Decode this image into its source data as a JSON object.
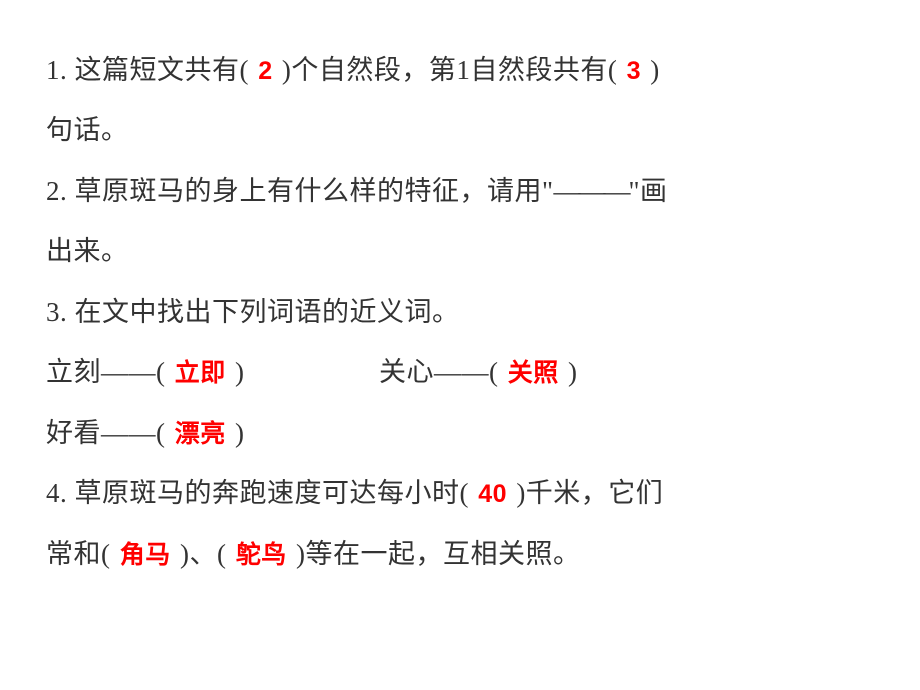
{
  "text_color": "#333333",
  "answer_color": "#ff0000",
  "background_color": "#ffffff",
  "base_font_size": 27,
  "answer_font_size": 25,
  "line_height": 2.24,
  "q1": {
    "prefix": "1.  这篇短文共有(",
    "ans1": "2",
    "mid1": ")个自然段，第1自然段共有(",
    "ans2": "3",
    "suffix1": ")",
    "line2": "句话。"
  },
  "q2": {
    "prefix": "2.  草原斑马的身上有什么样的特征，请用\"",
    "dash": "———",
    "mid": "\"画",
    "line2": "出来。"
  },
  "q3": {
    "title": "3.  在文中找出下列词语的近义词。",
    "w1_label": " 立刻——(",
    "w1_ans": "立即",
    "w1_close": ")",
    "w2_label": "关心——(",
    "w2_ans": "关照",
    "w2_close": ")",
    "w3_label": " 好看——(",
    "w3_ans": "漂亮",
    "w3_close": ")"
  },
  "q4": {
    "prefix": "4. 草原斑马的奔跑速度可达每小时(",
    "ans1": "40",
    "mid1": ")千米，它们",
    "line2a": "常和(",
    "ans2": "角马",
    "mid2": ")、(",
    "ans3": "鸵鸟",
    "suffix": ")等在一起，互相关照。"
  }
}
